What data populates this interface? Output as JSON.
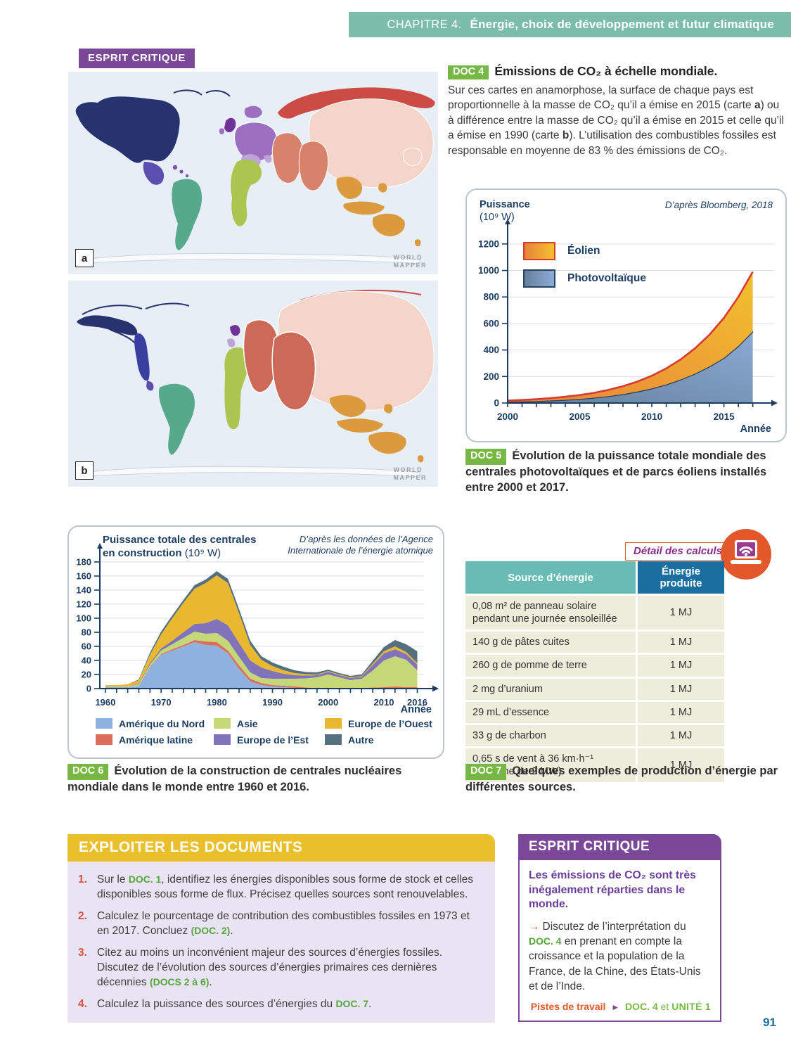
{
  "header": {
    "chapter": "CHAPITRE 4.",
    "title": "Énergie, choix de développement et futur climatique"
  },
  "esprit_badge": "ESPRIT CRITIQUE",
  "maps": {
    "label_a": "a",
    "label_b": "b",
    "watermark1": "WORLD",
    "watermark2": "MAPPER",
    "colors": {
      "ocean": "#e7eef6",
      "na_dark": "#26336e",
      "us_blue": "#3a3e9e",
      "mexico": "#5a4fae",
      "caribbean": "#7a52b0",
      "south_america": "#57a98c",
      "uk": "#6f3298",
      "europe_mid": "#9d6fc0",
      "europe_light": "#bda4d8",
      "africa": "#abc550",
      "russia": "#cd4b45",
      "middle_east": "#d8826c",
      "middle_east_b": "#cc6a57",
      "china": "#f4d5c9",
      "se_asia": "#dc9a3e",
      "antarctica": "#f8fafc"
    }
  },
  "doc4": {
    "badge": "DOC 4",
    "title": "Émissions de CO₂ à échelle mondiale.",
    "body_segments": [
      {
        "t": "Sur ces cartes en anamorphose, la surface de chaque pays est proportionnelle à la masse de CO₂ qu’il a émise en 2015 (carte ",
        "c": "n"
      },
      {
        "t": "a",
        "c": "b"
      },
      {
        "t": ") ou à différence entre la masse de CO₂ qu’il a émise en 2015 et celle qu’il a émise en 1990 (carte ",
        "c": "n"
      },
      {
        "t": "b",
        "c": "b"
      },
      {
        "t": "). L’utilisation des combustibles fossiles est responsable en moyenne de 83 % des émissions de CO₂.",
        "c": "n"
      }
    ]
  },
  "doc5": {
    "badge": "DOC 5",
    "caption": "Évolution de la puissance totale mondiale des centrales photovoltaïques et de parcs éoliens installés entre 2000 et 2017.",
    "ylabel_bold": "Puissance",
    "ylabel_unit": "(10⁹ W)",
    "source": "D’après Bloomberg, 2018",
    "xlabel": "Année",
    "legend": [
      "Éolien",
      "Photovoltaïque"
    ]
  },
  "doc6": {
    "badge": "DOC 6",
    "caption": "Évolution de la construction de centrales nucléaires mondiale dans le monde entre 1960 et 2016.",
    "title_line1": "Puissance totale des centrales",
    "title_bold2": "en construction ",
    "title_unit": "(10⁹ W)",
    "source_line1": "D’après les données de l’Agence",
    "source_line2": "Internationale de l’énergie atomique",
    "xlabel": "Année"
  },
  "doc7": {
    "badge": "DOC 7",
    "caption": "Quelques exemples de production d’énergie par différentes sources.",
    "detail_label": "Détail des calculs",
    "table": {
      "headers": [
        "Source d’énergie",
        "Énergie produite"
      ],
      "rows": [
        [
          "0,08 m² de panneau solaire pendant une journée ensoleillée",
          "1 MJ"
        ],
        [
          "140 g de pâtes cuites",
          "1 MJ"
        ],
        [
          "260 g de pomme de terre",
          "1 MJ"
        ],
        [
          "2 mg d’uranium",
          "1 MJ"
        ],
        [
          "29 mL d’essence",
          "1 MJ"
        ],
        [
          "33 g de charbon",
          "1 MJ"
        ],
        [
          "0,65 s de vent à 36 km·h⁻¹ (éolienne de 2 MW)",
          "1 MJ"
        ]
      ]
    }
  },
  "exploiter": {
    "header": "EXPLOITER LES DOCUMENTS",
    "questions": [
      {
        "num": "1.",
        "segments": [
          {
            "t": "Sur le ",
            "c": "n"
          },
          {
            "t": "DOC. 1",
            "c": "g"
          },
          {
            "t": ", identifiez les énergies disponibles sous forme de stock et celles disponibles sous forme de flux. Précisez quelles sources sont renouvelables.",
            "c": "n"
          }
        ]
      },
      {
        "num": "2.",
        "segments": [
          {
            "t": "Calculez le pourcentage de contribution des combustibles fossiles en 1973 et en 2017. Concluez ",
            "c": "n"
          },
          {
            "t": "(DOC. 2)",
            "c": "g"
          },
          {
            "t": ".",
            "c": "n"
          }
        ]
      },
      {
        "num": "3.",
        "segments": [
          {
            "t": "Citez au moins un inconvénient majeur des sources d’énergies fossiles. Discutez de l’évolution des sources d’énergies primaires ces dernières décennies ",
            "c": "n"
          },
          {
            "t": "(DOCS 2 à 6)",
            "c": "g"
          },
          {
            "t": ".",
            "c": "n"
          }
        ]
      },
      {
        "num": "4.",
        "segments": [
          {
            "t": "Calculez la puissance des sources d’énergies du ",
            "c": "n"
          },
          {
            "t": "DOC. 7",
            "c": "g"
          },
          {
            "t": ".",
            "c": "n"
          }
        ]
      }
    ]
  },
  "esprit": {
    "header": "ESPRIT CRITIQUE",
    "intro": "Les émissions de CO₂ sont très inégalement réparties dans le monde.",
    "arrow": "→",
    "body_segments": [
      {
        "t": "Discutez de l’interprétation du ",
        "c": "n"
      },
      {
        "t": "DOC. 4",
        "c": "g"
      },
      {
        "t": " en prenant en compte la croissance et la population de la France, de la Chine, des États-Unis et de l’Inde.",
        "c": "n"
      }
    ],
    "footer_label": "Pistes de travail",
    "footer_arrow": "►",
    "footer_ref": "DOC. 4",
    "footer_et": " et ",
    "footer_unit": "UNITÉ 1"
  },
  "page_number": "91",
  "chart_data": [
    {
      "id": "doc5",
      "type": "area",
      "title": "Évolution de la puissance totale mondiale des centrales photovoltaïques et de parcs éoliens installés entre 2000 et 2017",
      "ylabel": "Puissance (10⁹ W)",
      "xlabel": "Année",
      "source": "D’après Bloomberg, 2018",
      "stacked": true,
      "ylim": [
        0,
        1300
      ],
      "yticks": [
        0,
        200,
        400,
        600,
        800,
        1000,
        1200
      ],
      "xticks": [
        2000,
        2005,
        2010,
        2015
      ],
      "x": [
        2000,
        2001,
        2002,
        2003,
        2004,
        2005,
        2006,
        2007,
        2008,
        2009,
        2010,
        2011,
        2012,
        2013,
        2014,
        2015,
        2016,
        2017
      ],
      "series": [
        {
          "name": "Photovoltaïque",
          "color": "#7ea3c9",
          "gradient": [
            "#63809c",
            "#8cabd4"
          ],
          "line": "#27435f",
          "values": [
            10,
            12,
            15,
            19,
            24,
            31,
            40,
            52,
            67,
            86,
            110,
            140,
            177,
            222,
            276,
            340,
            430,
            540
          ]
        },
        {
          "name": "Éolien",
          "color": "#efb32d",
          "gradient": [
            "#e8823a",
            "#f2c12e"
          ],
          "line": "#d63b2f",
          "values": [
            8,
            11,
            14,
            18,
            23,
            29,
            37,
            47,
            60,
            76,
            96,
            121,
            152,
            191,
            240,
            302,
            370,
            450
          ]
        }
      ],
      "legend_position": "top-left inside plot"
    },
    {
      "id": "doc6",
      "type": "stacked-area",
      "title": "Puissance totale des centrales en construction (10⁹ W)",
      "xlabel": "Année",
      "source": "D’après les données de l’Agence Internationale de l’énergie atomique",
      "stacked": true,
      "ylim": [
        0,
        190
      ],
      "yticks": [
        0,
        20,
        40,
        60,
        80,
        100,
        120,
        140,
        160,
        180
      ],
      "xticks": [
        1960,
        1970,
        1980,
        1990,
        2000,
        2010,
        2016
      ],
      "x": [
        1960,
        1962,
        1964,
        1966,
        1968,
        1970,
        1972,
        1974,
        1976,
        1978,
        1980,
        1982,
        1984,
        1986,
        1988,
        1990,
        1992,
        1994,
        1996,
        1998,
        2000,
        2002,
        2004,
        2006,
        2008,
        2010,
        2012,
        2014,
        2016
      ],
      "series": [
        {
          "name": "Amérique du Nord",
          "color": "#8fb1e0",
          "values": [
            2,
            2,
            2,
            4,
            30,
            48,
            54,
            60,
            66,
            62,
            61,
            50,
            28,
            10,
            5,
            3,
            2,
            1,
            0.5,
            0.5,
            0.5,
            0.5,
            0.5,
            0.5,
            1,
            1,
            1,
            1,
            1
          ]
        },
        {
          "name": "Amérique latine",
          "color": "#dd6e5a",
          "values": [
            0,
            0,
            0,
            0,
            1,
            1,
            2,
            2,
            3,
            5,
            5,
            4,
            5,
            4,
            3,
            2,
            2,
            2,
            1,
            0.5,
            0.5,
            0.5,
            0.5,
            0.5,
            0.5,
            1,
            2,
            1,
            1
          ]
        },
        {
          "name": "Asie",
          "color": "#c4d878",
          "values": [
            1,
            1,
            1,
            2,
            3,
            5,
            7,
            10,
            12,
            11,
            13,
            14,
            12,
            9,
            7,
            9,
            10,
            11,
            13,
            15,
            19,
            15,
            11,
            13,
            24,
            38,
            43,
            39,
            24
          ]
        },
        {
          "name": "Europe de l’Est",
          "color": "#8173ba",
          "values": [
            0,
            0,
            0,
            1,
            2,
            3,
            5,
            8,
            11,
            15,
            20,
            22,
            20,
            17,
            15,
            11,
            7,
            5,
            4,
            3,
            4,
            3,
            3,
            3,
            8,
            10,
            10,
            8,
            8
          ]
        },
        {
          "name": "Europe de l’Ouest",
          "color": "#eab82e",
          "values": [
            2,
            2,
            3,
            5,
            12,
            20,
            32,
            42,
            50,
            57,
            62,
            60,
            42,
            22,
            11,
            7,
            5,
            3,
            2,
            1,
            1,
            1,
            1,
            1,
            2,
            3,
            4,
            3,
            2
          ]
        },
        {
          "name": "Autre",
          "color": "#55707f",
          "values": [
            0,
            0,
            0,
            1,
            3,
            4,
            4,
            4,
            5,
            5,
            6,
            6,
            6,
            6,
            5,
            5,
            5,
            4,
            3,
            3,
            2,
            2,
            2,
            2,
            4,
            6,
            9,
            11,
            17
          ]
        }
      ],
      "legend_position": "below plot, 2 rows"
    }
  ]
}
